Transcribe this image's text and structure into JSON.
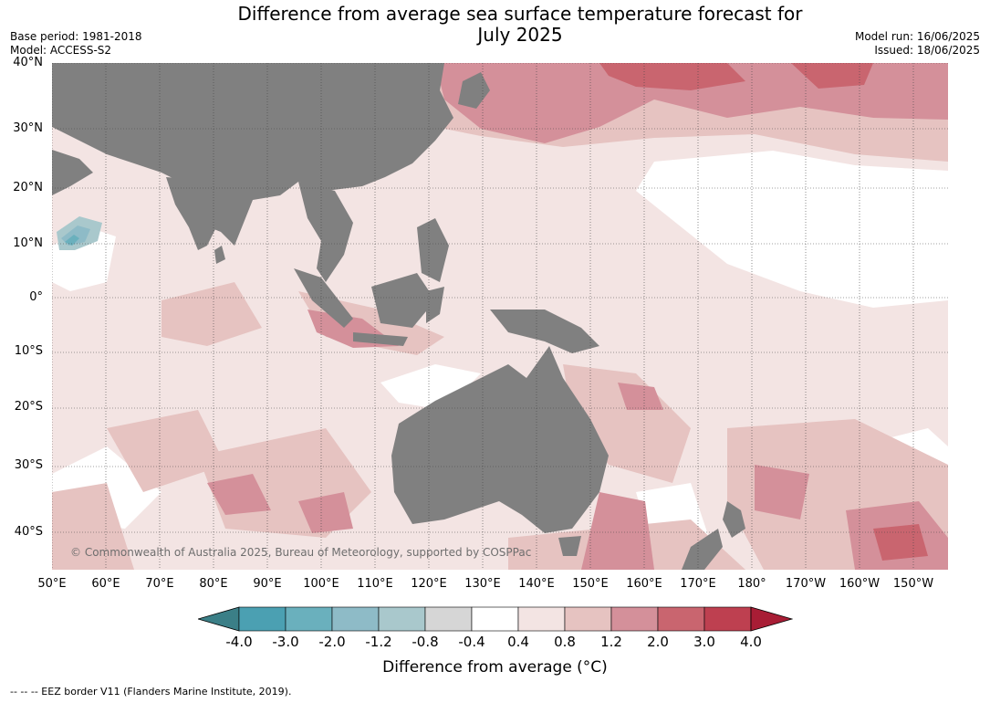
{
  "title_line1": "Difference from average sea surface temperature forecast for",
  "title_line2": "July 2025",
  "meta": {
    "base_period": "Base period: 1981-2018",
    "model": "Model: ACCESS-S2",
    "model_run": "Model run: 16/06/2025",
    "issued": "Issued: 18/06/2025"
  },
  "latitudes": [
    "40°N",
    "30°N",
    "20°N",
    "10°N",
    "0°",
    "10°S",
    "20°S",
    "30°S",
    "40°S"
  ],
  "longitudes": [
    "50°E",
    "60°E",
    "70°E",
    "80°E",
    "90°E",
    "100°E",
    "110°E",
    "120°E",
    "130°E",
    "140°E",
    "150°E",
    "160°E",
    "170°E",
    "180°",
    "170°W",
    "160°W",
    "150°W"
  ],
  "copyright": "© Commonwealth of Australia 2025, Bureau of Meteorology, supported by COSPPac",
  "colorbar": {
    "labels": [
      "-4.0",
      "-3.0",
      "-2.0",
      "-1.2",
      "-0.8",
      "-0.4",
      "0.4",
      "0.8",
      "1.2",
      "2.0",
      "3.0",
      "4.0"
    ],
    "colors": [
      "#3b7f87",
      "#4ba0b2",
      "#6ab0bd",
      "#8ebbc7",
      "#a9c8cc",
      "#d6d6d6",
      "#ffffff",
      "#f3e4e3",
      "#e6c3c1",
      "#d4909a",
      "#c9656f",
      "#be4050",
      "#a81d35"
    ],
    "title": "Difference from average (°C)"
  },
  "footer": "--  --  -- EEZ border V11 (Flanders Marine Institute, 2019).",
  "colors": {
    "land": "#808080",
    "ocean_base": "#f3e4e3"
  }
}
